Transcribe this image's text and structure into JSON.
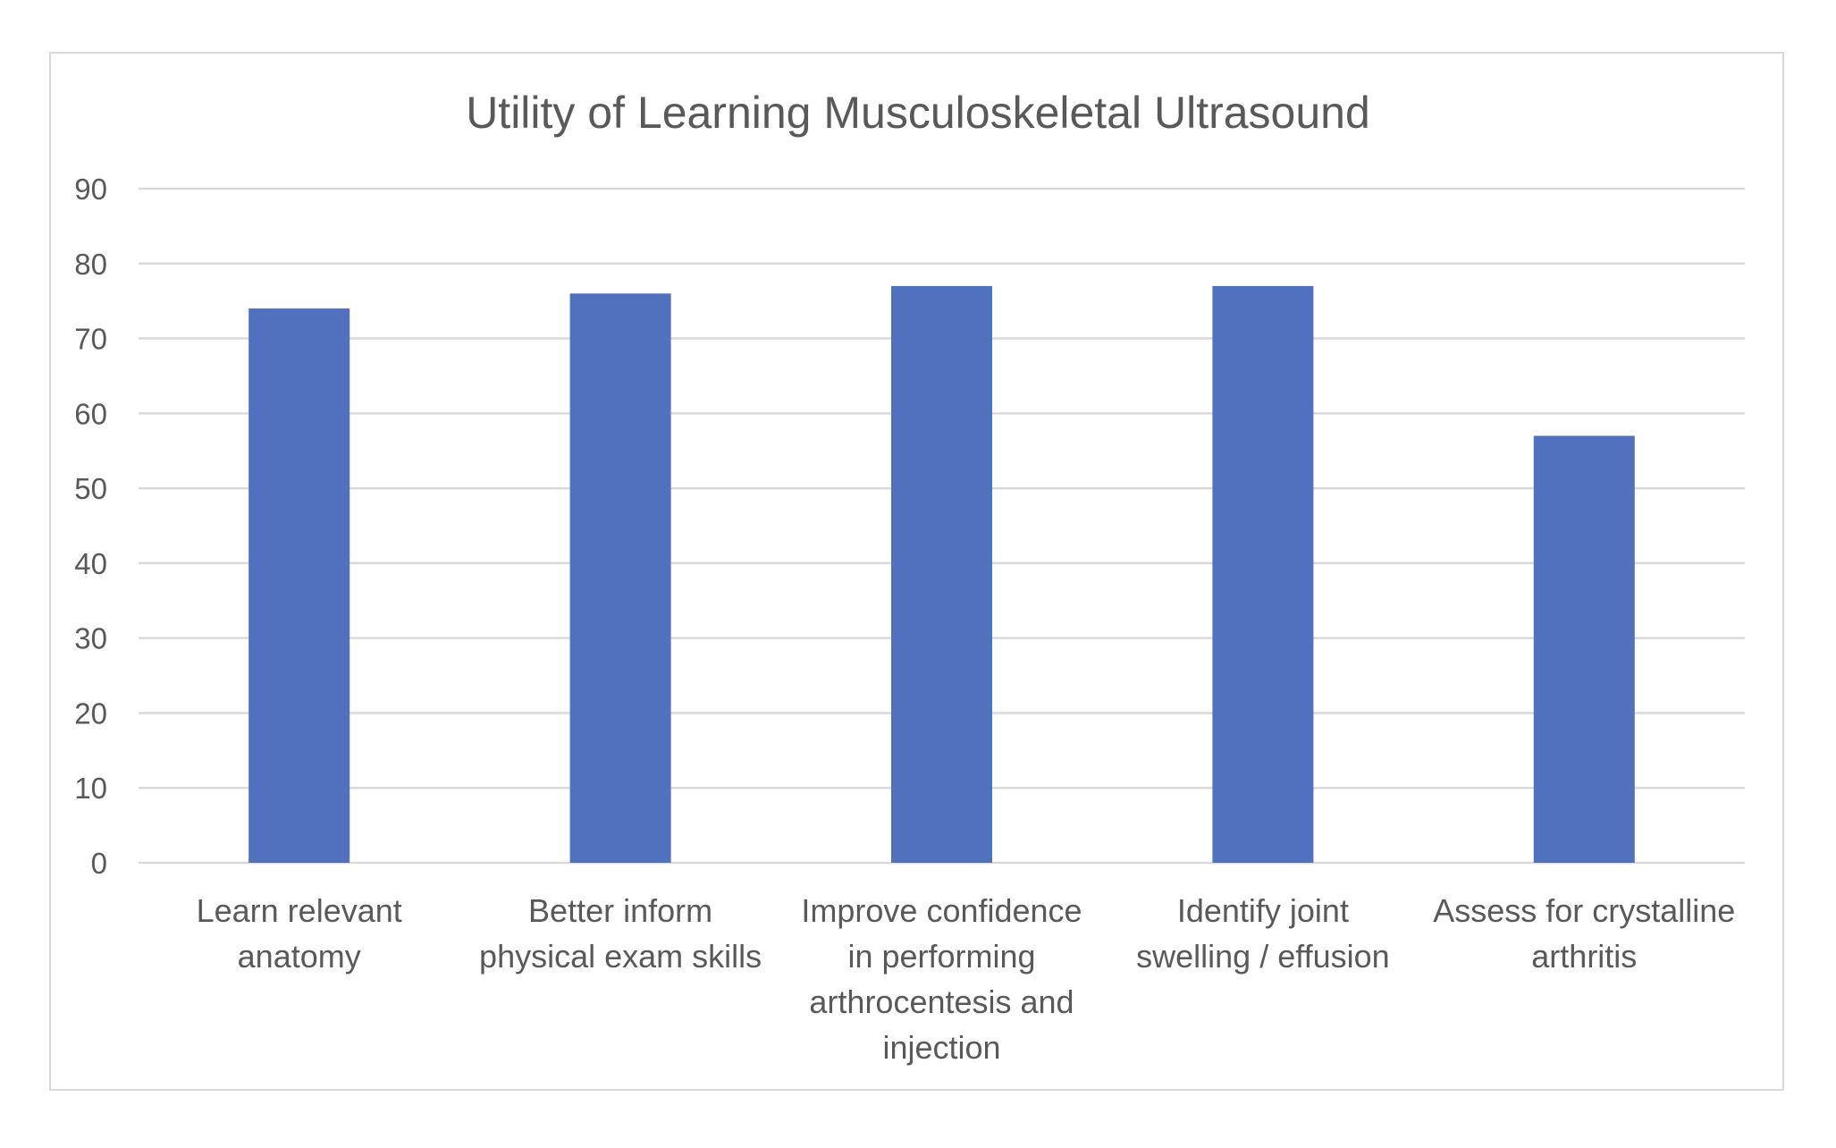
{
  "chart_data": {
    "type": "bar",
    "title": "Utility of Learning Musculoskeletal Ultrasound",
    "xlabel": "",
    "ylabel": "",
    "categories": [
      [
        "Learn relevant",
        "anatomy"
      ],
      [
        "Better inform",
        "physical exam skills"
      ],
      [
        "Improve confidence",
        "in performing",
        "arthrocentesis and",
        "injection"
      ],
      [
        "Identify joint",
        "swelling / effusion"
      ],
      [
        "Assess for crystalline",
        "arthritis"
      ]
    ],
    "values": [
      74,
      76,
      77,
      77,
      57
    ],
    "ylim": [
      0,
      90
    ],
    "yticks": [
      0,
      10,
      20,
      30,
      40,
      50,
      60,
      70,
      80,
      90
    ],
    "grid": true,
    "legend": "none",
    "colors": {
      "bar": "#4F71BE",
      "grid": "#d9d9d9",
      "text": "#595959"
    }
  }
}
